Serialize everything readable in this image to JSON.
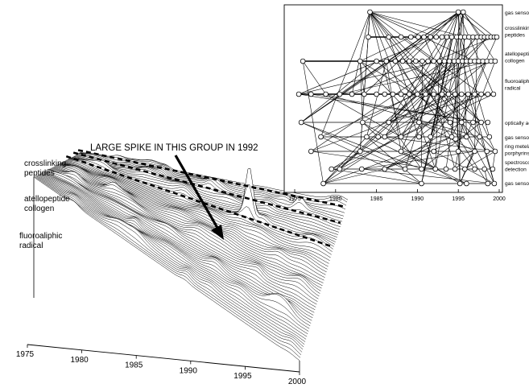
{
  "chart_data": [
    {
      "type": "scatter",
      "subtype": "linked-scatter",
      "xlim": [
        1975,
        2000
      ],
      "xticks": [
        1975,
        1980,
        1985,
        1990,
        1995,
        2000
      ],
      "row_labels": [
        [
          "gas sensor"
        ],
        [
          "crosslinking",
          "peptides"
        ],
        [
          "atellopeptide",
          "collogen"
        ],
        [
          "fluoroaliphic",
          "radical"
        ],
        [
          "optically act"
        ],
        [
          "gas sensor"
        ],
        [
          "ring metelat",
          "porphyrins"
        ],
        [
          "spectrosco",
          "detection"
        ],
        [
          "gas sensor"
        ]
      ],
      "rows": [
        {
          "points": [
            [
              1984.2,
              1
            ],
            [
              1995.0,
              1
            ],
            [
              1995.6,
              1
            ]
          ]
        },
        {
          "points": [
            [
              1984.0,
              1
            ],
            [
              1986.5,
              1
            ],
            [
              1988.0,
              1
            ],
            [
              1989.2,
              1
            ],
            [
              1990.1,
              1
            ],
            [
              1990.8,
              1
            ],
            [
              1991.6,
              1
            ],
            [
              1992.3,
              1
            ],
            [
              1993.0,
              1
            ],
            [
              1993.6,
              1
            ],
            [
              1994.2,
              1
            ],
            [
              1994.8,
              1
            ],
            [
              1995.3,
              1
            ],
            [
              1995.8,
              1
            ],
            [
              1996.3,
              1
            ],
            [
              1996.8,
              1
            ],
            [
              1997.3,
              1
            ],
            [
              1997.8,
              1
            ],
            [
              1998.2,
              1
            ],
            [
              1998.6,
              1
            ],
            [
              1999.0,
              1
            ],
            [
              1999.4,
              1
            ],
            [
              1999.7,
              1
            ]
          ]
        },
        {
          "points": [
            [
              1976.0,
              1
            ],
            [
              1983.0,
              1
            ],
            [
              1985.0,
              1
            ],
            [
              1986.2,
              1
            ],
            [
              1987.3,
              1
            ],
            [
              1988.2,
              1
            ],
            [
              1989.0,
              1
            ],
            [
              1989.8,
              1
            ],
            [
              1990.6,
              1
            ],
            [
              1991.3,
              1
            ],
            [
              1992.0,
              1
            ],
            [
              1992.7,
              1
            ],
            [
              1993.3,
              1
            ],
            [
              1993.9,
              1
            ],
            [
              1994.5,
              1
            ],
            [
              1995.0,
              1
            ],
            [
              1995.5,
              1
            ],
            [
              1996.0,
              1
            ],
            [
              1996.5,
              1
            ],
            [
              1997.0,
              1
            ],
            [
              1997.5,
              1
            ],
            [
              1998.0,
              1
            ],
            [
              1998.5,
              1
            ],
            [
              1999.0,
              1
            ],
            [
              1999.5,
              1
            ]
          ]
        },
        {
          "points": [
            [
              1975.5,
              1
            ],
            [
              1977.0,
              1
            ],
            [
              1978.8,
              1
            ],
            [
              1980.5,
              1
            ],
            [
              1982.0,
              1
            ],
            [
              1983.5,
              1
            ],
            [
              1985.0,
              1
            ],
            [
              1986.0,
              1
            ],
            [
              1987.0,
              1
            ],
            [
              1988.0,
              1
            ],
            [
              1989.0,
              1
            ],
            [
              1990.0,
              1
            ],
            [
              1991.0,
              1
            ],
            [
              1992.0,
              1
            ],
            [
              1993.0,
              1
            ],
            [
              1993.8,
              1
            ],
            [
              1994.6,
              1
            ],
            [
              1995.4,
              1
            ],
            [
              1996.2,
              1
            ],
            [
              1997.0,
              1
            ],
            [
              1997.8,
              1
            ],
            [
              1998.6,
              1
            ],
            [
              1999.3,
              1
            ]
          ]
        },
        {
          "points": [
            [
              1975.8,
              1
            ],
            [
              1983.3,
              1
            ],
            [
              1986.5,
              1
            ],
            [
              1990.2,
              1
            ],
            [
              1994.0,
              1
            ],
            [
              1995.4,
              1
            ],
            [
              1996.8,
              1
            ],
            [
              1997.8,
              1
            ],
            [
              1998.6,
              1
            ]
          ]
        },
        {
          "points": [
            [
              1978.2,
              1
            ],
            [
              1983.8,
              1
            ],
            [
              1985.2,
              1
            ],
            [
              1986.0,
              1
            ],
            [
              1988.0,
              1
            ],
            [
              1990.2,
              1
            ],
            [
              1991.6,
              1
            ],
            [
              1994.2,
              1
            ],
            [
              1996.0,
              1
            ],
            [
              1997.6,
              1
            ],
            [
              1998.8,
              1
            ]
          ]
        },
        {
          "points": [
            [
              1977.0,
              1
            ],
            [
              1983.0,
              1
            ],
            [
              1988.0,
              1
            ],
            [
              1992.0,
              1
            ],
            [
              1995.0,
              1
            ],
            [
              1997.0,
              1
            ],
            [
              1998.5,
              1
            ],
            [
              1999.5,
              1
            ]
          ]
        },
        {
          "points": [
            [
              1979.5,
              1
            ],
            [
              1980.5,
              1
            ],
            [
              1983.2,
              1
            ],
            [
              1986.0,
              1
            ],
            [
              1988.5,
              1
            ],
            [
              1990.5,
              1
            ],
            [
              1992.2,
              1
            ],
            [
              1993.5,
              1
            ],
            [
              1994.6,
              1
            ],
            [
              1995.8,
              1
            ],
            [
              1997.0,
              1
            ],
            [
              1998.2,
              1
            ],
            [
              1999.2,
              1
            ]
          ]
        },
        {
          "points": [
            [
              1978.5,
              1
            ],
            [
              1990.5,
              1
            ],
            [
              1995.2,
              1
            ],
            [
              1996.0,
              1
            ],
            [
              1998.6,
              1
            ],
            [
              1999.4,
              1
            ]
          ]
        }
      ]
    },
    {
      "type": "area",
      "subtype": "3d-waterfall",
      "xlim": [
        1975,
        2000
      ],
      "xticks": [
        1975,
        1980,
        1985,
        1990,
        1995,
        2000
      ],
      "row_labels": [
        [
          "crosslinking",
          "peptides"
        ],
        [
          "atellopeptide",
          "collogen"
        ],
        [
          "fluoroaliphic",
          "radical"
        ]
      ],
      "annotation": "LARGE SPIKE IN THIS GROUP IN 1992",
      "highlighted_peak": {
        "x": 1992,
        "y": 1.0
      }
    }
  ]
}
